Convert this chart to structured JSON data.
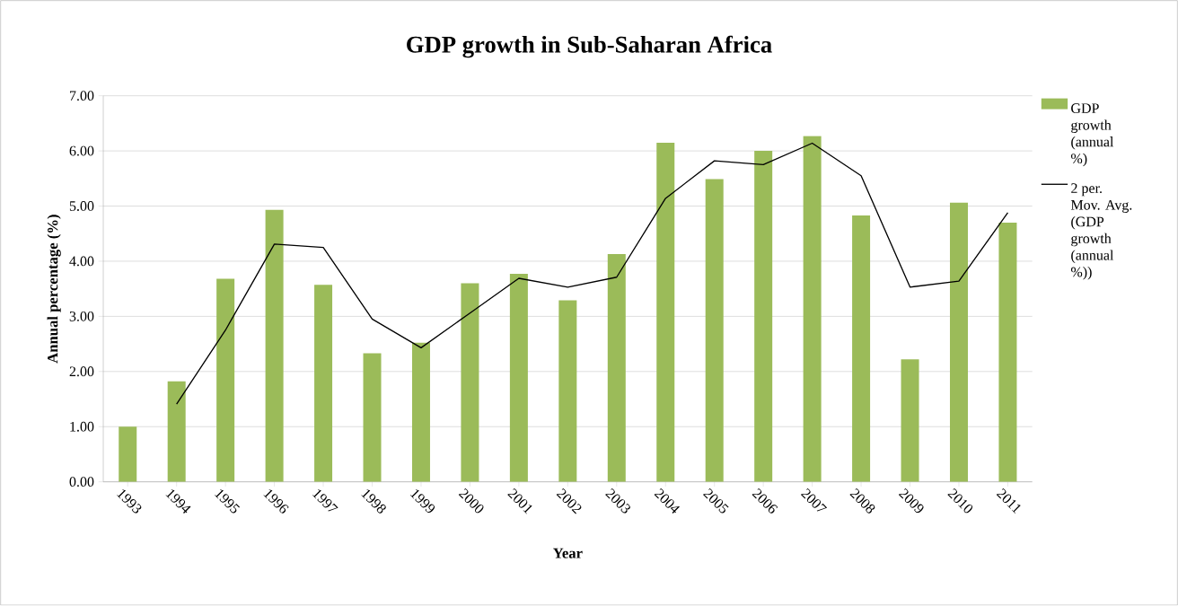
{
  "chart_data": {
    "type": "bar",
    "title": "GDP growth in Sub-Saharan Africa",
    "xlabel": "Year",
    "ylabel": "Annual percentage (%)",
    "categories": [
      "1993",
      "1994",
      "1995",
      "1996",
      "1997",
      "1998",
      "1999",
      "2000",
      "2001",
      "2002",
      "2003",
      "2004",
      "2005",
      "2006",
      "2007",
      "2008",
      "2009",
      "2010",
      "2011"
    ],
    "series": [
      {
        "name": "GDP growth (annual %)",
        "color": "#9bbb59",
        "values": [
          1.0,
          1.82,
          3.68,
          4.93,
          3.57,
          2.33,
          2.52,
          3.6,
          3.77,
          3.29,
          4.13,
          6.15,
          5.49,
          6.0,
          6.27,
          4.83,
          2.22,
          5.06,
          4.7
        ]
      },
      {
        "name": "2 per. Mov. Avg. (GDP growth (annual %))",
        "type": "line",
        "color": "#000000",
        "values": [
          null,
          1.41,
          2.75,
          4.31,
          4.25,
          2.95,
          2.43,
          3.06,
          3.69,
          3.53,
          3.71,
          5.14,
          5.82,
          5.75,
          6.14,
          5.55,
          3.53,
          3.64,
          4.88
        ]
      }
    ],
    "ylim": [
      0,
      7
    ],
    "yticks": [
      {
        "value": 0,
        "label": "0.00"
      },
      {
        "value": 1,
        "label": "1.00"
      },
      {
        "value": 2,
        "label": "2.00"
      },
      {
        "value": 3,
        "label": "3.00"
      },
      {
        "value": 4,
        "label": "4.00"
      },
      {
        "value": 5,
        "label": "5.00"
      },
      {
        "value": 6,
        "label": "6.00"
      },
      {
        "value": 7,
        "label": "7.00"
      }
    ],
    "grid": "y",
    "legend": "right"
  }
}
